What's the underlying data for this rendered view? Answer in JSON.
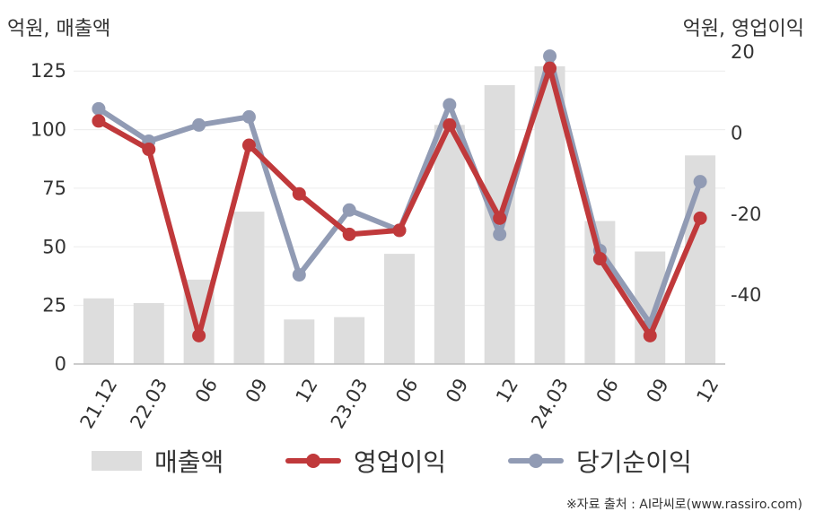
{
  "chart_data": {
    "type": "bar+line",
    "left_axis_label": "억원, 매출액",
    "right_axis_label": "억원, 영업이익",
    "categories": [
      "21.12",
      "22.03",
      "06",
      "09",
      "12",
      "23.03",
      "06",
      "09",
      "12",
      "24.03",
      "06",
      "09",
      "12"
    ],
    "left_ticks": [
      "0",
      "25",
      "50",
      "75",
      "100",
      "125"
    ],
    "right_ticks": [
      "20",
      "0",
      "-20",
      "-40"
    ],
    "left_ylim": [
      0,
      140
    ],
    "right_ylim": [
      -57,
      24
    ],
    "series": [
      {
        "name": "매출액",
        "type": "bar",
        "axis": "left",
        "color": "#dddddd",
        "values": [
          28,
          26,
          36,
          65,
          19,
          20,
          47,
          102,
          119,
          127,
          61,
          48,
          89
        ]
      },
      {
        "name": "영업이익",
        "type": "line",
        "axis": "right",
        "color": "#c0393b",
        "values": [
          3,
          -4,
          -50,
          -3,
          -15,
          -25,
          -24,
          2,
          -21,
          16,
          -31,
          -50,
          -21
        ]
      },
      {
        "name": "당기순이익",
        "type": "line",
        "axis": "right",
        "color": "#919bb4",
        "values": [
          6,
          -2,
          2,
          4,
          -35,
          -19,
          -24,
          7,
          -25,
          19,
          -29,
          -47,
          -12
        ]
      }
    ],
    "grid": true,
    "legend_position": "bottom"
  },
  "source": "※자료 출처 : AI라씨로(www.rassiro.com)"
}
